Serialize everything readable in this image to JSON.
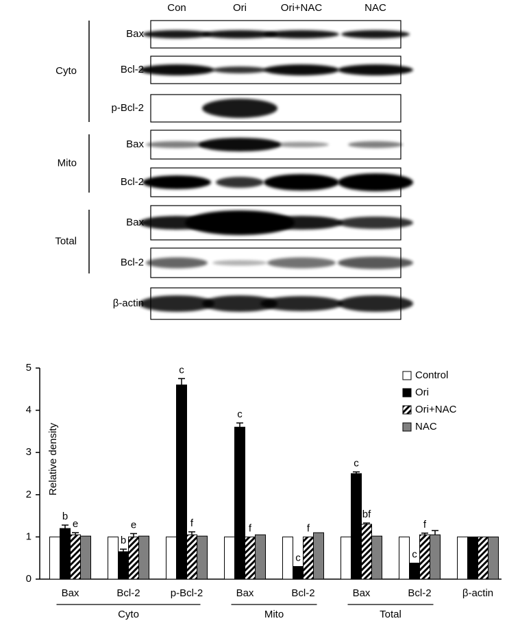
{
  "blot": {
    "lanes": [
      "Con",
      "Ori",
      "Ori+NAC",
      "NAC"
    ],
    "groups": [
      {
        "name": "Cyto",
        "rows": [
          "Bax",
          "Bcl-2",
          "p-Bcl-2"
        ]
      },
      {
        "name": "Mito",
        "rows": [
          "Bax",
          "Bcl-2"
        ]
      },
      {
        "name": "Total",
        "rows": [
          "Bax",
          "Bcl-2"
        ]
      }
    ],
    "loading_control": "β-actin"
  },
  "chart_data": {
    "type": "bar",
    "ylabel": "Relative density",
    "categories": [
      "Bax",
      "Bcl-2",
      "p-Bcl-2",
      "Bax",
      "Bcl-2",
      "Bax",
      "Bcl-2",
      "β-actin"
    ],
    "groups": [
      {
        "name": "Cyto",
        "size": 3
      },
      {
        "name": "Mito",
        "size": 2
      },
      {
        "name": "Total",
        "size": 2
      }
    ],
    "series": [
      {
        "name": "Control",
        "color": "#ffffff",
        "values": [
          1,
          1,
          1,
          1,
          1,
          1,
          1,
          1
        ]
      },
      {
        "name": "Ori",
        "color": "#000000",
        "values": [
          1.2,
          0.65,
          4.6,
          3.6,
          0.3,
          2.5,
          0.38,
          1.0
        ],
        "errors": [
          0.08,
          0.06,
          0.15,
          0.1,
          null,
          0.04,
          null,
          null
        ],
        "annotations": [
          "b",
          "b",
          "c",
          "c",
          "c",
          "c",
          "c",
          null
        ]
      },
      {
        "name": "Ori+NAC",
        "color": "#ffffff",
        "hatch": true,
        "values": [
          1.05,
          1.0,
          1.05,
          1.0,
          1.0,
          1.3,
          1.05,
          1.0
        ],
        "errors": [
          0.05,
          0.08,
          0.07,
          null,
          null,
          0.03,
          0.04,
          null
        ],
        "annotations": [
          "e",
          "e",
          "f",
          "f",
          "f",
          "bf",
          "f",
          null
        ]
      },
      {
        "name": "NAC",
        "color": "#808080",
        "values": [
          1.02,
          1.02,
          1.02,
          1.05,
          1.1,
          1.02,
          1.05,
          1.0
        ],
        "errors": [
          null,
          null,
          null,
          null,
          null,
          null,
          0.1,
          null
        ]
      }
    ],
    "ylim": [
      0,
      5
    ],
    "yticks": [
      0,
      1,
      2,
      3,
      4,
      5
    ],
    "legend": "top-right"
  }
}
